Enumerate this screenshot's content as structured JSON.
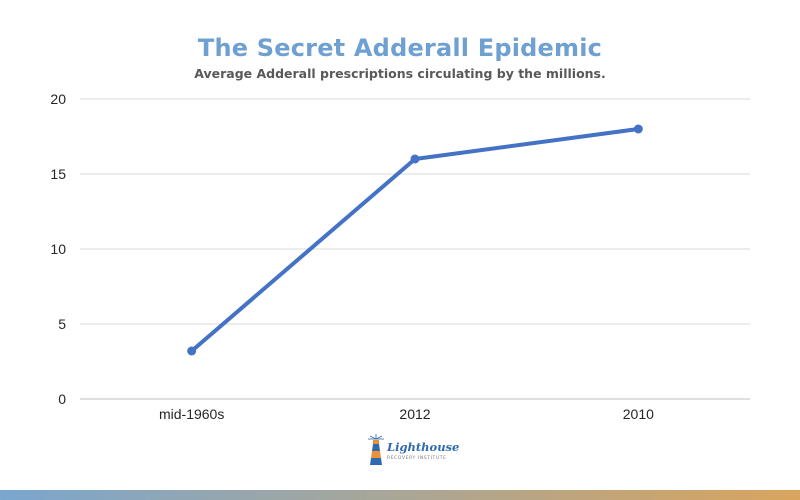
{
  "logo": {
    "word": "Lighthouse",
    "tagline": "RECOVERY INSTITUTE"
  },
  "colors": {
    "title": "#6fa0d2",
    "line": "#4472c4",
    "grid": "#d9d9d9",
    "logo_blue": "#2f69ae",
    "logo_orange": "#e8913a",
    "bar_left": "#7aa6cf",
    "bar_right": "#d9a55d"
  },
  "chart_data": {
    "type": "line",
    "title": "The Secret Adderall Epidemic",
    "subtitle": "Average Adderall prescriptions circulating by the millions.",
    "categories": [
      "mid-1960s",
      "2012",
      "2010"
    ],
    "series": [
      {
        "values": [
          3.2,
          16,
          18
        ]
      }
    ],
    "ylim": [
      0,
      20
    ],
    "yticks": [
      0,
      5,
      10,
      15,
      20
    ],
    "grid": true,
    "legend": "none",
    "xlabel": "",
    "ylabel": ""
  }
}
